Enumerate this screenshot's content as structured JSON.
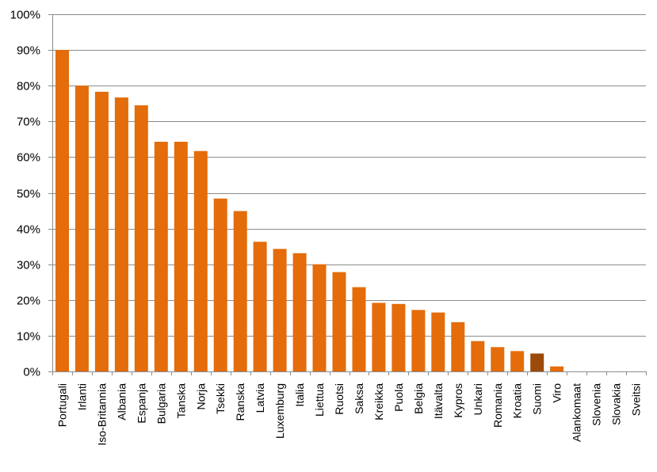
{
  "chart_data": {
    "type": "bar",
    "title": "",
    "xlabel": "",
    "ylabel": "",
    "ylim": [
      0,
      100
    ],
    "y_ticks": [
      "0%",
      "10%",
      "20%",
      "30%",
      "40%",
      "50%",
      "60%",
      "70%",
      "80%",
      "90%",
      "100%"
    ],
    "grid": true,
    "legend": "none",
    "bar_color": "#E46C0A",
    "highlight_color": "#9C4A09",
    "highlight_category": "Suomi",
    "categories": [
      "Portugali",
      "Irlanti",
      "Iso-Britannia",
      "Albania",
      "Espanja",
      "Bulgaria",
      "Tanska",
      "Norja",
      "Tsekki",
      "Ranska",
      "Latvia",
      "Luxemburg",
      "Italia",
      "Liettua",
      "Ruotsi",
      "Saksa",
      "Kreikka",
      "Puola",
      "Belgia",
      "Itävalta",
      "Kypros",
      "Unkari",
      "Romania",
      "Kroatia",
      "Suomi",
      "Viro",
      "Alankomaat",
      "Slovenia",
      "Slovakia",
      "Sveitsi"
    ],
    "values": [
      90,
      80,
      78.3,
      76.7,
      74.5,
      64.3,
      64.3,
      61.7,
      48.4,
      44.9,
      36.3,
      34.3,
      33.1,
      30,
      27.8,
      23.6,
      19.2,
      18.9,
      17.2,
      16.5,
      13.8,
      8.5,
      6.8,
      5.7,
      5,
      1.4,
      0,
      0,
      0,
      0
    ]
  }
}
